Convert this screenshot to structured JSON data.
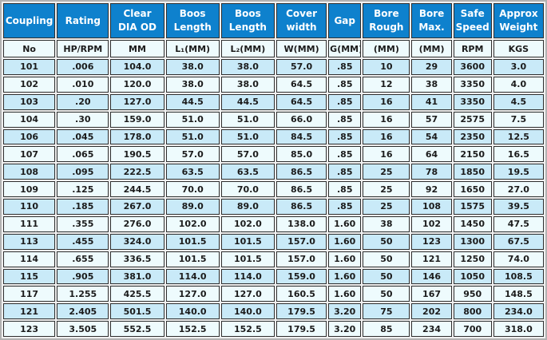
{
  "colors": {
    "header_bg": "#0e81cd",
    "header_text": "#ffffff",
    "row_odd": "#c9eaf8",
    "row_even": "#eefbfd",
    "cell_border": "#2e2e2e",
    "cell_text": "#1b1b1b",
    "frame_border": "#b2b2b2",
    "frame_bg": "#f0f0f0"
  },
  "table": {
    "columns": [
      {
        "h1": "Coupling",
        "h2": "",
        "sub": "No"
      },
      {
        "h1": "Rating",
        "h2": "",
        "sub": "HP/RPM"
      },
      {
        "h1": "Clear",
        "h2": "DIA OD",
        "sub": "MM"
      },
      {
        "h1": "Boos",
        "h2": "Length",
        "sub": "L₁(MM)"
      },
      {
        "h1": "Boos",
        "h2": "Length",
        "sub": "L₂(MM)"
      },
      {
        "h1": "Cover",
        "h2": "width",
        "sub": "W(MM)"
      },
      {
        "h1": "Gap",
        "h2": "",
        "sub": "G(MM)"
      },
      {
        "h1": "Bore",
        "h2": "Rough",
        "sub": "(MM)"
      },
      {
        "h1": "Bore",
        "h2": "Max.",
        "sub": "(MM)"
      },
      {
        "h1": "Safe",
        "h2": "Speed",
        "sub": "RPM"
      },
      {
        "h1": "Approx",
        "h2": "Weight",
        "sub": "KGS"
      }
    ],
    "rows": [
      [
        "101",
        ".006",
        "104.0",
        "38.0",
        "38.0",
        "57.0",
        ".85",
        "10",
        "29",
        "3600",
        "3.0"
      ],
      [
        "102",
        ".010",
        "120.0",
        "38.0",
        "38.0",
        "64.5",
        ".85",
        "12",
        "38",
        "3350",
        "4.0"
      ],
      [
        "103",
        ".20",
        "127.0",
        "44.5",
        "44.5",
        "64.5",
        ".85",
        "16",
        "41",
        "3350",
        "4.5"
      ],
      [
        "104",
        ".30",
        "159.0",
        "51.0",
        "51.0",
        "66.0",
        ".85",
        "16",
        "57",
        "2575",
        "7.5"
      ],
      [
        "106",
        ".045",
        "178.0",
        "51.0",
        "51.0",
        "84.5",
        ".85",
        "16",
        "54",
        "2350",
        "12.5"
      ],
      [
        "107",
        ".065",
        "190.5",
        "57.0",
        "57.0",
        "85.0",
        ".85",
        "16",
        "64",
        "2150",
        "16.5"
      ],
      [
        "108",
        ".095",
        "222.5",
        "63.5",
        "63.5",
        "86.5",
        ".85",
        "25",
        "78",
        "1850",
        "19.5"
      ],
      [
        "109",
        ".125",
        "244.5",
        "70.0",
        "70.0",
        "86.5",
        ".85",
        "25",
        "92",
        "1650",
        "27.0"
      ],
      [
        "110",
        ".185",
        "267.0",
        "89.0",
        "89.0",
        "86.5",
        ".85",
        "25",
        "108",
        "1575",
        "39.5"
      ],
      [
        "111",
        ".355",
        "276.0",
        "102.0",
        "102.0",
        "138.0",
        "1.60",
        "38",
        "102",
        "1450",
        "47.5"
      ],
      [
        "113",
        ".455",
        "324.0",
        "101.5",
        "101.5",
        "157.0",
        "1.60",
        "50",
        "123",
        "1300",
        "67.5"
      ],
      [
        "114",
        ".655",
        "336.5",
        "101.5",
        "101.5",
        "157.0",
        "1.60",
        "50",
        "121",
        "1250",
        "74.0"
      ],
      [
        "115",
        ".905",
        "381.0",
        "114.0",
        "114.0",
        "159.0",
        "1.60",
        "50",
        "146",
        "1050",
        "108.5"
      ],
      [
        "117",
        "1.255",
        "425.5",
        "127.0",
        "127.0",
        "160.5",
        "1.60",
        "50",
        "167",
        "950",
        "148.5"
      ],
      [
        "121",
        "2.405",
        "501.5",
        "140.0",
        "140.0",
        "179.5",
        "3.20",
        "75",
        "202",
        "800",
        "234.0"
      ],
      [
        "123",
        "3.505",
        "552.5",
        "152.5",
        "152.5",
        "179.5",
        "3.20",
        "85",
        "234",
        "700",
        "318.0"
      ]
    ]
  }
}
